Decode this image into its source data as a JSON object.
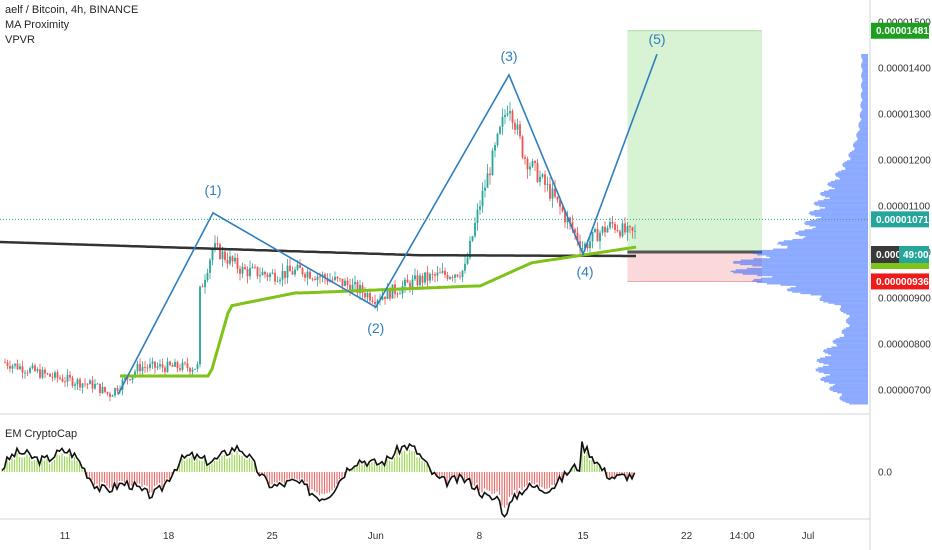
{
  "legend": {
    "symbol": "aelf / Bitcoin, 4h, BINANCE",
    "indicator1": "MA Proximity",
    "indicator2": "VPVR",
    "oscillator": "EM CryptoCap"
  },
  "colors": {
    "up": "#26a69a",
    "down": "#ef5350",
    "wave": "#2f7fbf",
    "ma_green": "#7ec21a",
    "ma_black": "#333333",
    "vpvr": "#2962ff",
    "target_zone": "#d8f2d4",
    "stop_zone": "#fbd9da",
    "price_badge_current": "#26a69a",
    "price_badge_target": "#1e9e1e",
    "price_badge_stop": "#ef1b1b"
  },
  "chart_data": {
    "type": "candlestick",
    "y_axis": {
      "ticks": [
        "0.00001500",
        "0.00001400",
        "0.00001300",
        "0.00001200",
        "0.00001100",
        "0.00001000",
        "0.00000900",
        "0.00000800",
        "0.00000700"
      ],
      "ylim": [
        6.5e-06,
        1.55e-05
      ]
    },
    "x_axis": {
      "ticks": [
        "11",
        "18",
        "25",
        "Jun",
        "8",
        "15",
        "22",
        "14:00",
        "Jul"
      ]
    },
    "price_labels": {
      "target": "0.00001481",
      "current": "0.00001071",
      "entry": "0.000",
      "countdown": "49:00",
      "stop": "0.00000936"
    },
    "elliott_waves": [
      {
        "label": "(1)",
        "date": "May 21",
        "price": 1.085e-05
      },
      {
        "label": "(2)",
        "date": "Jun 1",
        "price": 8.8e-06
      },
      {
        "label": "(3)",
        "date": "Jun 10",
        "price": 1.385e-05
      },
      {
        "label": "(4)",
        "date": "Jun 15",
        "price": 9.95e-06
      },
      {
        "label": "(5)",
        "date": "Jun 20",
        "price": 1.43e-05
      }
    ],
    "position": {
      "target": 1.481e-05,
      "entry": 1e-05,
      "stop": 9.36e-06
    },
    "oscillator": {
      "name": "EM CryptoCap",
      "tick": "0.0"
    }
  }
}
